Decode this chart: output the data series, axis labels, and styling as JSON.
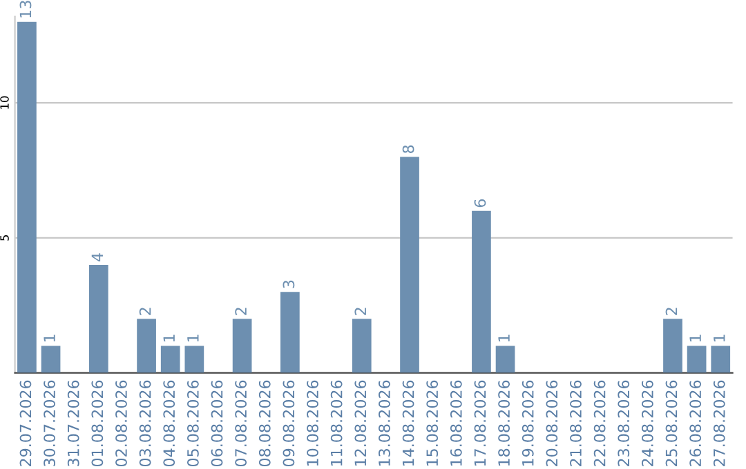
{
  "chart_data": {
    "type": "bar",
    "categories": [
      "29.07.2026",
      "30.07.2026",
      "31.07.2026",
      "01.08.2026",
      "02.08.2026",
      "03.08.2026",
      "04.08.2026",
      "05.08.2026",
      "06.08.2026",
      "07.08.2026",
      "08.08.2026",
      "09.08.2026",
      "10.08.2026",
      "11.08.2026",
      "12.08.2026",
      "13.08.2026",
      "14.08.2026",
      "15.08.2026",
      "16.08.2026",
      "17.08.2026",
      "18.08.2026",
      "19.08.2026",
      "20.08.2026",
      "21.08.2026",
      "22.08.2026",
      "23.08.2026",
      "24.08.2026",
      "25.08.2026",
      "26.08.2026",
      "27.08.2026"
    ],
    "values": [
      13,
      1,
      0,
      4,
      0,
      2,
      1,
      1,
      0,
      2,
      0,
      3,
      0,
      0,
      2,
      0,
      8,
      0,
      0,
      6,
      1,
      0,
      0,
      0,
      0,
      0,
      0,
      2,
      1,
      1
    ],
    "value_labels": [
      "13",
      "1",
      null,
      "4",
      null,
      "2",
      "1",
      "1",
      null,
      "2",
      null,
      "3",
      null,
      null,
      "2",
      null,
      "8",
      null,
      null,
      "6",
      "1",
      null,
      null,
      null,
      null,
      null,
      null,
      "2",
      "1",
      "1"
    ],
    "color": "#6d8fb0",
    "ylim": [
      0,
      13.2
    ],
    "yticks": [
      5,
      10
    ],
    "grid": "y"
  }
}
